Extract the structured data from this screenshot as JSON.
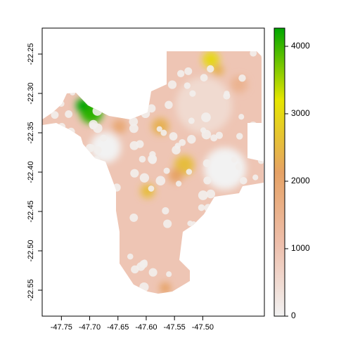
{
  "chart_data": {
    "type": "raster",
    "xlim": [
      -47.784,
      -47.391
    ],
    "ylim": [
      -22.583,
      -22.217
    ],
    "xticks": [
      -47.75,
      {
        "value": -47.7,
        "label": "-47.70"
      },
      -47.65,
      {
        "value": -47.6,
        "label": "-47.60"
      },
      -47.55,
      {
        "value": -47.5,
        "label": "-47.50"
      }
    ],
    "yticks": [
      -22.25,
      {
        "value": -22.3,
        "label": "-22.30"
      },
      -22.35,
      {
        "value": -22.4,
        "label": "-22.40"
      },
      -22.45,
      {
        "value": -22.5,
        "label": "-22.50"
      },
      -22.55
    ],
    "zlim": [
      0,
      4270
    ],
    "zticks": [
      0,
      1000,
      2000,
      3000,
      4000
    ],
    "colors": [
      "#f2f2f2",
      "#eebfac",
      "#e6a265",
      "#e6e600",
      "#00a600"
    ]
  }
}
